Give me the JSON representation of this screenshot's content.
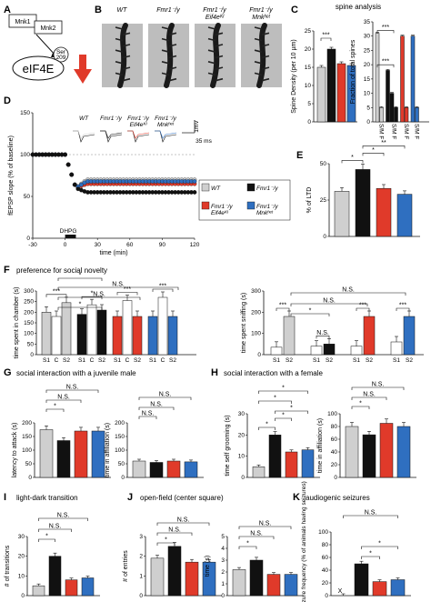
{
  "colors": {
    "gray": "#cfcfcf",
    "black": "#111111",
    "red": "#e03a2a",
    "blue": "#2f6fc0"
  },
  "A": {
    "letter": "A",
    "mnk1": "Mnk1",
    "mnk2": "Mnk2",
    "ser": "Ser",
    "ser_num": "209",
    "eif4e": "eIF4E"
  },
  "B": {
    "letter": "B",
    "labels": [
      {
        "l1": "WT",
        "l2": ""
      },
      {
        "l1": "Fmr1⁻/y",
        "l2": ""
      },
      {
        "l1": "Fmr1⁻/y",
        "l2": "Eif4eᴷᴵ"
      },
      {
        "l1": "Fmr1⁻/y",
        "l2": "Mnkʰᵉᵗ"
      }
    ]
  },
  "C": {
    "letter": "C",
    "title": "spine analysis",
    "left": {
      "ylabel": "Spine Density (per 10 µm)",
      "ymax": 25,
      "ticks": [
        "0",
        "5",
        "10",
        "15",
        "20",
        "25"
      ],
      "values": [
        15,
        20,
        16,
        15.5
      ],
      "stars": "***"
    },
    "right": {
      "ylabel": "Fraction of total spines",
      "ymax": 35,
      "ticks": [
        "0",
        "5",
        "10",
        "15",
        "20",
        "25",
        "30",
        "35"
      ],
      "groups": [
        {
          "values": [
            31,
            5
          ]
        },
        {
          "values": [
            18,
            10,
            5
          ]
        },
        {
          "values": [
            30,
            5
          ]
        },
        {
          "values": [
            30,
            5
          ]
        }
      ],
      "xlabel": "S/M F",
      "stars_top": "***",
      "stars_mid": "***"
    }
  },
  "D": {
    "letter": "D",
    "ylabel": "fEPSP slope (% of baseline)",
    "xlabel": "time (min)",
    "xticks": [
      "-30",
      "0",
      "30",
      "60",
      "90",
      "120"
    ],
    "yticks": [
      "0",
      "50",
      "100",
      "150"
    ],
    "drug": "DHPG",
    "trace_labels": [
      "WT",
      "Fmr1⁻/y",
      "Fmr1⁻/y",
      "Fmr1⁻/y"
    ],
    "trace_sub": [
      "",
      "",
      "Eif4eᴷᴵ",
      "Mnkʰᵉᵗ"
    ],
    "scale_y": "1mV",
    "scale_x": "35 ms",
    "legend": [
      {
        "name": "WT",
        "sub": ""
      },
      {
        "name": "Fmr1⁻/y",
        "sub": ""
      },
      {
        "name": "Fmr1⁻/y",
        "sub": "Eif4eᴷᴵ"
      },
      {
        "name": "Fmr1⁻/y",
        "sub": "Mnkʰᵉᵗ"
      }
    ]
  },
  "E": {
    "letter": "E",
    "ylabel": "% of LTD",
    "ymax": 50,
    "ticks": [
      "0",
      "25",
      "50"
    ],
    "values": [
      31,
      46,
      33,
      29
    ],
    "stars": [
      "*",
      "*",
      "**"
    ]
  },
  "F": {
    "letter": "F",
    "title": "preference for social novelty",
    "ns": "N.S.",
    "left": {
      "ylabel": "time spent in chamber (s)",
      "ticks": [
        "0",
        "50",
        "100",
        "150",
        "200",
        "250",
        "300"
      ],
      "groups": [
        [
          200,
          180,
          245
        ],
        [
          190,
          235,
          210
        ],
        [
          180,
          255,
          180
        ],
        [
          180,
          270,
          180
        ]
      ],
      "xlabels": [
        "S1",
        "C",
        "S2"
      ]
    },
    "right": {
      "ylabel": "time spent sniffing (s)",
      "ticks": [
        "0",
        "100",
        "200",
        "300"
      ],
      "groups": [
        [
          35,
          180
        ],
        [
          40,
          50
        ],
        [
          40,
          180
        ],
        [
          60,
          180
        ]
      ],
      "xlabels": [
        "S1",
        "S2"
      ]
    },
    "sig_left": [
      "***",
      "*",
      "***",
      "***"
    ],
    "sig_right": [
      "***",
      "N.S.",
      "***",
      "***"
    ],
    "star": "*"
  },
  "G": {
    "letter": "G",
    "title": "social interaction with a juvenile male",
    "ns": "N.S.",
    "star": "*",
    "left": {
      "ylabel": "latency to attack (s)",
      "ticks": [
        "0",
        "50",
        "100",
        "150",
        "200"
      ],
      "values": [
        175,
        135,
        170,
        170
      ]
    },
    "right": {
      "ylabel": "time in affiliation (s)",
      "ticks": [
        "0",
        "50",
        "100",
        "150",
        "200"
      ],
      "values": [
        60,
        55,
        60,
        57
      ]
    }
  },
  "H": {
    "letter": "H",
    "title": "social interaction with a female",
    "ns": "N.S.",
    "star": "*",
    "left": {
      "ylabel": "time self grooming (s)",
      "ticks": [
        "0",
        "10",
        "20",
        "30"
      ],
      "values": [
        5,
        20,
        12,
        13
      ]
    },
    "right": {
      "ylabel": "time in affiliation (s)",
      "ticks": [
        "0",
        "20",
        "40",
        "60",
        "80",
        "100"
      ],
      "values": [
        80,
        67,
        85,
        80
      ]
    }
  },
  "I": {
    "letter": "I",
    "title": "light-dark transition",
    "ylabel": "# of transitions",
    "ticks": [
      "0",
      "10",
      "20",
      "30"
    ],
    "values": [
      5,
      20,
      8,
      9
    ],
    "ns": "N.S.",
    "star": "*"
  },
  "J": {
    "letter": "J",
    "title": "open-field (center square)",
    "ns": "N.S.",
    "star": "*",
    "left": {
      "ylabel": "# of entries",
      "ticks": [
        "0",
        "1",
        "2",
        "3"
      ],
      "values": [
        1.9,
        2.5,
        1.7,
        1.7
      ]
    },
    "right": {
      "ylabel": "time (s)",
      "ticks": [
        "0",
        "1",
        "2",
        "3",
        "4",
        "5"
      ],
      "values": [
        2.2,
        3.0,
        1.8,
        1.8
      ]
    }
  },
  "K": {
    "letter": "K",
    "title": "audiogenic seizures",
    "ylabel": "seizure frequency (% of animals having seizures)",
    "ticks": [
      "0",
      "20",
      "40",
      "60",
      "80",
      "100"
    ],
    "values": [
      0,
      50,
      22,
      25
    ],
    "ns": "N.S.",
    "star": "*",
    "x_mark": "X"
  }
}
